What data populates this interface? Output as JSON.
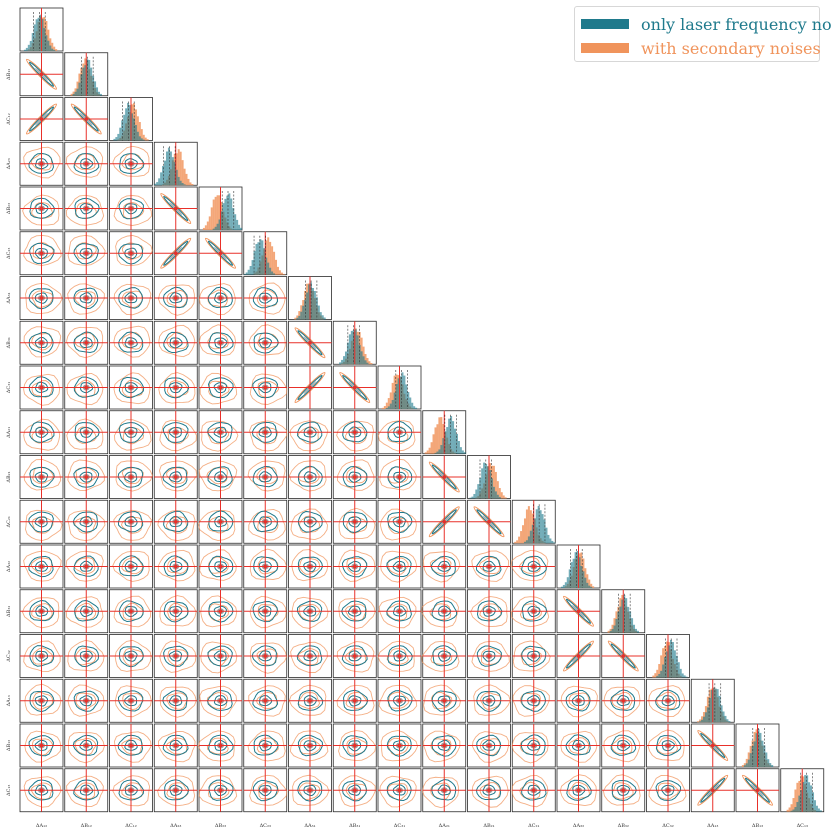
{
  "chart_data": {
    "type": "corner",
    "n_params": 18,
    "params": [
      "ΔA₁₂",
      "ΔB₁₂",
      "ΔC₁₂",
      "ΔA₂₃",
      "ΔB₂₃",
      "ΔC₂₃",
      "ΔA₃₁",
      "ΔB₃₁",
      "ΔC₃₁",
      "ΔA₂₁",
      "ΔB₂₁",
      "ΔC₂₁",
      "ΔA₃₂",
      "ΔB₃₂",
      "ΔC₃₂",
      "ΔA₁₃",
      "ΔB₁₃",
      "ΔC₁₃"
    ],
    "truth_color": "#e8302a",
    "series": [
      {
        "name": "only laser frequency noise",
        "color": "#1f7a8c",
        "hist_offsets": [
          -0.1,
          0.05,
          -0.12,
          -0.3,
          0.35,
          -0.25,
          0.05,
          -0.05,
          0.1,
          0.3,
          -0.15,
          0.25,
          -0.1,
          0.05,
          0.15,
          0.1,
          0.05,
          0.2
        ]
      },
      {
        "name": "with secondary noises",
        "color": "#f0945c",
        "hist_offsets": [
          0.05,
          -0.05,
          0.1,
          0.1,
          -0.15,
          0.15,
          -0.05,
          0.1,
          -0.1,
          -0.2,
          0.1,
          -0.2,
          0.05,
          -0.05,
          -0.05,
          0.0,
          -0.05,
          -0.05
        ]
      }
    ],
    "correlations": [
      {
        "pair": [
          "ΔA₁₂",
          "ΔB₁₂"
        ],
        "sign": "negative"
      },
      {
        "pair": [
          "ΔA₁₂",
          "ΔC₁₂"
        ],
        "sign": "positive"
      },
      {
        "pair": [
          "ΔB₁₂",
          "ΔC₁₂"
        ],
        "sign": "negative"
      },
      {
        "pair": [
          "ΔA₂₃",
          "ΔB₂₃"
        ],
        "sign": "negative"
      },
      {
        "pair": [
          "ΔA₂₃",
          "ΔC₂₃"
        ],
        "sign": "positive"
      },
      {
        "pair": [
          "ΔB₂₃",
          "ΔC₂₃"
        ],
        "sign": "negative"
      },
      {
        "pair": [
          "ΔA₃₁",
          "ΔB₃₁"
        ],
        "sign": "negative"
      },
      {
        "pair": [
          "ΔA₃₁",
          "ΔC₃₁"
        ],
        "sign": "positive"
      },
      {
        "pair": [
          "ΔB₃₁",
          "ΔC₃₁"
        ],
        "sign": "negative"
      },
      {
        "pair": [
          "ΔA₂₁",
          "ΔB₂₁"
        ],
        "sign": "negative"
      },
      {
        "pair": [
          "ΔA₂₁",
          "ΔC₂₁"
        ],
        "sign": "positive"
      },
      {
        "pair": [
          "ΔB₂₁",
          "ΔC₂₁"
        ],
        "sign": "negative"
      },
      {
        "pair": [
          "ΔA₃₂",
          "ΔB₃₂"
        ],
        "sign": "negative"
      },
      {
        "pair": [
          "ΔA₃₂",
          "ΔC₃₂"
        ],
        "sign": "positive"
      },
      {
        "pair": [
          "ΔB₃₂",
          "ΔC₃₂"
        ],
        "sign": "negative"
      },
      {
        "pair": [
          "ΔA₁₃",
          "ΔB₁₃"
        ],
        "sign": "negative"
      },
      {
        "pair": [
          "ΔA₁₃",
          "ΔC₁₃"
        ],
        "sign": "positive"
      },
      {
        "pair": [
          "ΔB₁₃",
          "ΔC₁₃"
        ],
        "sign": "negative"
      }
    ],
    "legend_position": "top-right",
    "grid": false
  }
}
